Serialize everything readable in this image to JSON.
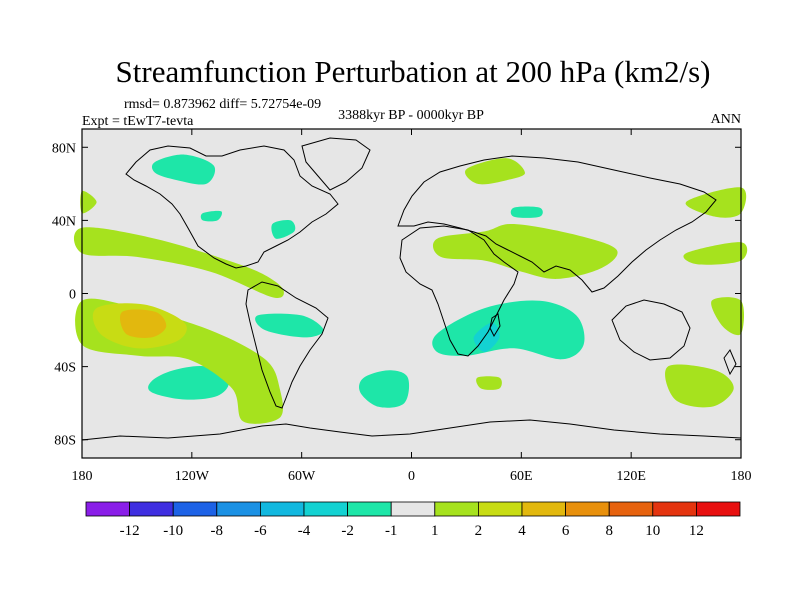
{
  "chart_data": {
    "type": "heatmap",
    "title": "Streamfunction Perturbation at 200 hPa (km2/s)",
    "stats_line": "rmsd= 0.873962 diff= 5.72754e-09",
    "experiment": "Expt = tEwT7-tevta",
    "period": "3388kyr BP - 0000kyr BP",
    "season": "ANN",
    "lon_range": [
      -180,
      180
    ],
    "lat_range": [
      -90,
      90
    ],
    "x_ticks": [
      {
        "value": -180,
        "label": "180"
      },
      {
        "value": -120,
        "label": "120W"
      },
      {
        "value": -60,
        "label": "60W"
      },
      {
        "value": 0,
        "label": "0"
      },
      {
        "value": 60,
        "label": "60E"
      },
      {
        "value": 120,
        "label": "120E"
      },
      {
        "value": 180,
        "label": "180"
      }
    ],
    "y_ticks": [
      {
        "value": 80,
        "label": "80N"
      },
      {
        "value": 40,
        "label": "40N"
      },
      {
        "value": 0,
        "label": "0"
      },
      {
        "value": -40,
        "label": "40S"
      },
      {
        "value": -80,
        "label": "80S"
      }
    ],
    "colorbar": {
      "labels": [
        "-12",
        "-10",
        "-8",
        "-6",
        "-4",
        "-2",
        "-1",
        "1",
        "2",
        "4",
        "6",
        "8",
        "10",
        "12"
      ],
      "colors": [
        "#8a1ee8",
        "#3f2ee0",
        "#1d62e6",
        "#1b91e4",
        "#12b8df",
        "#13d2d2",
        "#1ee6a8",
        "#e6e6e6",
        "#a6e21e",
        "#c8dc14",
        "#e2b80e",
        "#e8900c",
        "#e6620e",
        "#e4340f",
        "#e81010"
      ]
    },
    "regions": [
      {
        "level": "-2 to -1",
        "color": "#1ee6a8",
        "points": [
          [
            -140,
            72
          ],
          [
            -124,
            76
          ],
          [
            -108,
            70
          ],
          [
            -112,
            60
          ],
          [
            -128,
            62
          ],
          [
            -140,
            66
          ]
        ]
      },
      {
        "level": "-2 to -1",
        "color": "#1ee6a8",
        "points": [
          [
            -76,
            38
          ],
          [
            -66,
            40
          ],
          [
            -64,
            34
          ],
          [
            -74,
            30
          ]
        ]
      },
      {
        "level": "-2 to -1",
        "color": "#1ee6a8",
        "points": [
          [
            -114,
            44
          ],
          [
            -104,
            45
          ],
          [
            -106,
            40
          ],
          [
            -114,
            40
          ]
        ]
      },
      {
        "level": "-2 to -1",
        "color": "#1ee6a8",
        "points": [
          [
            -84,
            -12
          ],
          [
            -60,
            -12
          ],
          [
            -48,
            -20
          ],
          [
            -58,
            -24
          ],
          [
            -80,
            -20
          ]
        ]
      },
      {
        "level": "-2 to -1",
        "color": "#1ee6a8",
        "points": [
          [
            -142,
            -48
          ],
          [
            -130,
            -42
          ],
          [
            -112,
            -40
          ],
          [
            -100,
            -48
          ],
          [
            -106,
            -56
          ],
          [
            -124,
            -58
          ],
          [
            -142,
            -54
          ]
        ]
      },
      {
        "level": "-2 to -1",
        "color": "#1ee6a8",
        "points": [
          [
            -26,
            -46
          ],
          [
            -12,
            -42
          ],
          [
            -2,
            -46
          ],
          [
            -4,
            -60
          ],
          [
            -18,
            -62
          ],
          [
            -28,
            -54
          ]
        ]
      },
      {
        "level": "-2 to -1",
        "color": "#1ee6a8",
        "points": [
          [
            14,
            -22
          ],
          [
            40,
            -8
          ],
          [
            70,
            -4
          ],
          [
            90,
            -12
          ],
          [
            94,
            -28
          ],
          [
            82,
            -36
          ],
          [
            56,
            -30
          ],
          [
            30,
            -34
          ],
          [
            14,
            -32
          ]
        ]
      },
      {
        "level": "-2 to -1",
        "color": "#1ee6a8",
        "points": [
          [
            56,
            47
          ],
          [
            70,
            47
          ],
          [
            70,
            42
          ],
          [
            56,
            42
          ]
        ]
      },
      {
        "level": "-4 to -2",
        "color": "#13d2d2",
        "points": [
          [
            34,
            -24
          ],
          [
            44,
            -16
          ],
          [
            48,
            -24
          ],
          [
            40,
            -32
          ]
        ]
      },
      {
        "level": "1 to 2",
        "color": "#a6e21e",
        "points": [
          [
            -180,
            56
          ],
          [
            -172,
            50
          ],
          [
            -180,
            44
          ]
        ]
      },
      {
        "level": "1 to 2",
        "color": "#a6e21e",
        "points": [
          [
            -180,
            36
          ],
          [
            -140,
            30
          ],
          [
            -100,
            18
          ],
          [
            -80,
            10
          ],
          [
            -70,
            2
          ],
          [
            -76,
            -2
          ],
          [
            -110,
            12
          ],
          [
            -150,
            20
          ],
          [
            -180,
            22
          ]
        ]
      },
      {
        "level": "1 to 2",
        "color": "#a6e21e",
        "points": [
          [
            -180,
            -4
          ],
          [
            -150,
            -8
          ],
          [
            -110,
            -20
          ],
          [
            -80,
            -36
          ],
          [
            -72,
            -52
          ],
          [
            -72,
            -68
          ],
          [
            -92,
            -70
          ],
          [
            -98,
            -52
          ],
          [
            -122,
            -36
          ],
          [
            -150,
            -34
          ],
          [
            -180,
            -28
          ]
        ]
      },
      {
        "level": "1 to 2",
        "color": "#a6e21e",
        "points": [
          [
            30,
            68
          ],
          [
            52,
            74
          ],
          [
            62,
            66
          ],
          [
            52,
            62
          ],
          [
            36,
            60
          ]
        ]
      },
      {
        "level": "1 to 2",
        "color": "#a6e21e",
        "points": [
          [
            14,
            30
          ],
          [
            40,
            34
          ],
          [
            56,
            38
          ],
          [
            90,
            32
          ],
          [
            112,
            24
          ],
          [
            104,
            14
          ],
          [
            80,
            8
          ],
          [
            60,
            12
          ],
          [
            40,
            18
          ],
          [
            16,
            20
          ]
        ]
      },
      {
        "level": "1 to 2",
        "color": "#a6e21e",
        "points": [
          [
            150,
            50
          ],
          [
            180,
            58
          ],
          [
            180,
            44
          ],
          [
            166,
            42
          ]
        ]
      },
      {
        "level": "1 to 2",
        "color": "#a6e21e",
        "points": [
          [
            150,
            22
          ],
          [
            180,
            28
          ],
          [
            180,
            18
          ],
          [
            156,
            16
          ]
        ]
      },
      {
        "level": "1 to 2",
        "color": "#a6e21e",
        "points": [
          [
            164,
            -4
          ],
          [
            180,
            -4
          ],
          [
            180,
            -22
          ],
          [
            170,
            -18
          ]
        ]
      },
      {
        "level": "1 to 2",
        "color": "#a6e21e",
        "points": [
          [
            140,
            -40
          ],
          [
            166,
            -42
          ],
          [
            176,
            -52
          ],
          [
            164,
            -62
          ],
          [
            144,
            -58
          ]
        ]
      },
      {
        "level": "1 to 2",
        "color": "#a6e21e",
        "points": [
          [
            36,
            -46
          ],
          [
            48,
            -46
          ],
          [
            48,
            -52
          ],
          [
            38,
            -52
          ]
        ]
      },
      {
        "level": "2 to 4",
        "color": "#c8dc14",
        "points": [
          [
            -172,
            -8
          ],
          [
            -146,
            -6
          ],
          [
            -124,
            -16
          ],
          [
            -128,
            -26
          ],
          [
            -150,
            -30
          ],
          [
            -170,
            -22
          ]
        ]
      },
      {
        "level": "4 to 6",
        "color": "#e2b80e",
        "points": [
          [
            -158,
            -10
          ],
          [
            -140,
            -10
          ],
          [
            -134,
            -18
          ],
          [
            -142,
            -24
          ],
          [
            -156,
            -22
          ]
        ]
      }
    ]
  }
}
